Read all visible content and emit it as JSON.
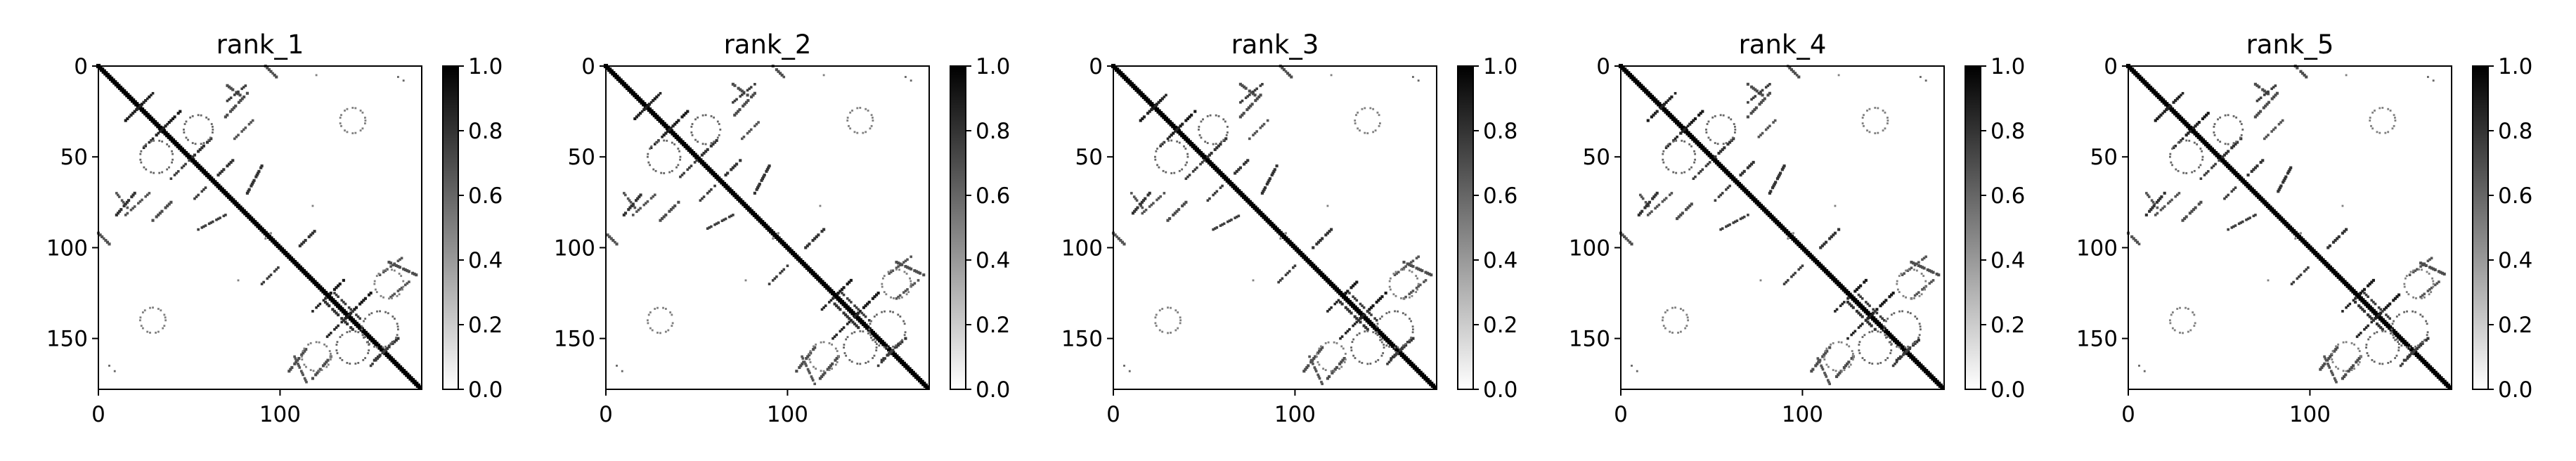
{
  "chart_data": {
    "type": "heatmap",
    "panel_titles": [
      "rank_1",
      "rank_2",
      "rank_3",
      "rank_4",
      "rank_5"
    ],
    "matrix_size": 178,
    "colormap": "Greys",
    "value_range": [
      0.0,
      1.0
    ],
    "x_ticks": [
      0,
      100
    ],
    "y_ticks": [
      0,
      50,
      100,
      150
    ],
    "colorbar_ticks": [
      "0.0",
      "0.2",
      "0.4",
      "0.6",
      "0.8",
      "1.0"
    ],
    "grid": false,
    "contact_segments": [
      {
        "from": [
          0,
          0
        ],
        "to": [
          177,
          177
        ],
        "value": 1.0
      },
      {
        "from": [
          17,
          28
        ],
        "to": [
          30,
          15
        ],
        "value": 0.9
      },
      {
        "from": [
          25,
          45
        ],
        "to": [
          38,
          32
        ],
        "value": 0.9
      },
      {
        "from": [
          40,
          62
        ],
        "to": [
          50,
          52
        ],
        "value": 0.8
      },
      {
        "from": [
          52,
          74
        ],
        "to": [
          60,
          66
        ],
        "value": 0.8
      },
      {
        "from": [
          10,
          70
        ],
        "to": [
          16,
          78
        ],
        "value": 0.7
      },
      {
        "from": [
          15,
          82
        ],
        "to": [
          28,
          70
        ],
        "value": 0.7
      },
      {
        "from": [
          55,
          90
        ],
        "to": [
          70,
          82
        ],
        "value": 0.8
      },
      {
        "from": [
          70,
          20
        ],
        "to": [
          82,
          10
        ],
        "value": 0.8
      },
      {
        "from": [
          75,
          40
        ],
        "to": [
          85,
          30
        ],
        "value": 0.7
      },
      {
        "from": [
          90,
          120
        ],
        "to": [
          100,
          110
        ],
        "value": 0.8
      },
      {
        "from": [
          118,
          135
        ],
        "to": [
          125,
          128
        ],
        "value": 0.9
      },
      {
        "from": [
          125,
          150
        ],
        "to": [
          140,
          135
        ],
        "value": 0.9
      },
      {
        "from": [
          130,
          125
        ],
        "to": [
          145,
          140
        ],
        "value": 0.8
      },
      {
        "from": [
          150,
          165
        ],
        "to": [
          162,
          152
        ],
        "value": 0.8
      },
      {
        "from": [
          155,
          115
        ],
        "to": [
          168,
          105
        ],
        "value": 0.7
      },
      {
        "from": [
          160,
          128
        ],
        "to": [
          172,
          118
        ],
        "value": 0.7
      },
      {
        "from": [
          108,
          160
        ],
        "to": [
          115,
          175
        ],
        "value": 0.7
      },
      {
        "from": [
          92,
          0
        ],
        "to": [
          98,
          6
        ],
        "value": 0.7
      },
      {
        "from": [
          0,
          92
        ],
        "to": [
          6,
          98
        ],
        "value": 0.7
      }
    ],
    "contact_arcs": [
      {
        "center": [
          50,
          32
        ],
        "radius": 9,
        "value": 0.6
      },
      {
        "center": [
          35,
          55
        ],
        "radius": 8,
        "value": 0.6
      },
      {
        "center": [
          145,
          155
        ],
        "radius": 10,
        "value": 0.6
      },
      {
        "center": [
          155,
          140
        ],
        "radius": 9,
        "value": 0.6
      },
      {
        "center": [
          30,
          140
        ],
        "radius": 7,
        "value": 0.5
      },
      {
        "center": [
          140,
          30
        ],
        "radius": 7,
        "value": 0.5
      },
      {
        "center": [
          120,
          160
        ],
        "radius": 8,
        "value": 0.5
      },
      {
        "center": [
          160,
          120
        ],
        "radius": 8,
        "value": 0.5
      }
    ],
    "isolated_points": [
      {
        "pos": [
          6,
          165
        ],
        "value": 0.6
      },
      {
        "pos": [
          8,
          168
        ],
        "value": 0.6
      },
      {
        "pos": [
          165,
          6
        ],
        "value": 0.6
      },
      {
        "pos": [
          168,
          9
        ],
        "value": 0.6
      },
      {
        "pos": [
          5,
          120
        ],
        "value": 0.5
      },
      {
        "pos": [
          77,
          118
        ],
        "value": 0.5
      },
      {
        "pos": [
          118,
          77
        ],
        "value": 0.5
      },
      {
        "pos": [
          92,
          95
        ],
        "value": 0.5
      },
      {
        "pos": [
          95,
          92
        ],
        "value": 0.5
      }
    ]
  }
}
